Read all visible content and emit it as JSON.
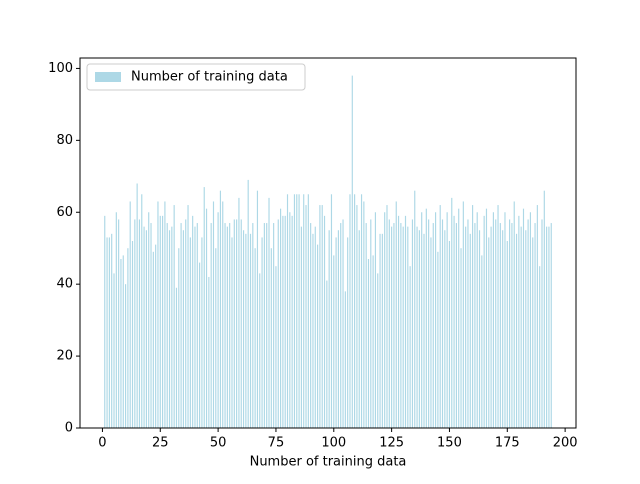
{
  "chart_data": {
    "type": "bar",
    "xlabel": "Number of training data",
    "x": [
      1,
      2,
      3,
      4,
      5,
      6,
      7,
      8,
      9,
      10,
      11,
      12,
      13,
      14,
      15,
      16,
      17,
      18,
      19,
      20,
      21,
      22,
      23,
      24,
      25,
      26,
      27,
      28,
      29,
      30,
      31,
      32,
      33,
      34,
      35,
      36,
      37,
      38,
      39,
      40,
      41,
      42,
      43,
      44,
      45,
      46,
      47,
      48,
      49,
      50,
      51,
      52,
      53,
      54,
      55,
      56,
      57,
      58,
      59,
      60,
      61,
      62,
      63,
      64,
      65,
      66,
      67,
      68,
      69,
      70,
      71,
      72,
      73,
      74,
      75,
      76,
      77,
      78,
      79,
      80,
      81,
      82,
      83,
      84,
      85,
      86,
      87,
      88,
      89,
      90,
      91,
      92,
      93,
      94,
      95,
      96,
      97,
      98,
      99,
      100,
      101,
      102,
      103,
      104,
      105,
      106,
      107,
      108,
      109,
      110,
      111,
      112,
      113,
      114,
      115,
      116,
      117,
      118,
      119,
      120,
      121,
      122,
      123,
      124,
      125,
      126,
      127,
      128,
      129,
      130,
      131,
      132,
      133,
      134,
      135,
      136,
      137,
      138,
      139,
      140,
      141,
      142,
      143,
      144,
      145,
      146,
      147,
      148,
      149,
      150,
      151,
      152,
      153,
      154,
      155,
      156,
      157,
      158,
      159,
      160,
      161,
      162,
      163,
      164,
      165,
      166,
      167,
      168,
      169,
      170,
      171,
      172,
      173,
      174,
      175,
      176,
      177,
      178,
      179,
      180,
      181,
      182,
      183,
      184,
      185,
      186,
      187,
      188,
      189,
      190,
      191,
      192,
      193,
      194
    ],
    "series": [
      {
        "name": "Number of training data",
        "color": "#add8e6",
        "values": [
          59,
          53,
          53,
          54,
          43,
          60,
          58,
          47,
          48,
          40,
          50,
          63,
          52,
          58,
          68,
          58,
          65,
          56,
          55,
          60,
          57,
          49,
          51,
          63,
          59,
          59,
          63,
          57,
          55,
          56,
          62,
          39,
          50,
          57,
          55,
          58,
          62,
          53,
          59,
          56,
          57,
          46,
          53,
          67,
          61,
          42,
          57,
          63,
          50,
          60,
          66,
          63,
          57,
          56,
          57,
          53,
          58,
          58,
          64,
          58,
          55,
          54,
          69,
          54,
          57,
          50,
          66,
          43,
          53,
          57,
          57,
          64,
          50,
          57,
          45,
          58,
          61,
          59,
          59,
          65,
          60,
          59,
          65,
          65,
          65,
          56,
          65,
          62,
          65,
          57,
          54,
          56,
          51,
          62,
          62,
          59,
          41,
          55,
          65,
          48,
          53,
          55,
          57,
          58,
          38,
          53,
          65,
          98,
          65,
          62,
          55,
          65,
          63,
          57,
          47,
          58,
          48,
          60,
          43,
          54,
          54,
          60,
          62,
          58,
          56,
          57,
          63,
          59,
          57,
          56,
          59,
          56,
          45,
          58,
          66,
          56,
          55,
          60,
          54,
          61,
          58,
          53,
          57,
          60,
          49,
          62,
          58,
          55,
          60,
          52,
          64,
          59,
          57,
          61,
          50,
          63,
          56,
          58,
          54,
          62,
          57,
          60,
          55,
          48,
          59,
          61,
          53,
          56,
          60,
          58,
          62,
          57,
          55,
          60,
          52,
          58,
          57,
          63,
          54,
          59,
          56,
          61,
          55,
          58,
          60,
          53,
          57,
          62,
          45,
          58,
          66,
          56,
          56,
          57
        ]
      }
    ],
    "xlim": [
      -9.7,
      204.7
    ],
    "ylim": [
      0,
      102.9
    ],
    "xticks": [
      0,
      25,
      50,
      75,
      100,
      125,
      150,
      175,
      200
    ],
    "yticks": [
      0,
      20,
      40,
      60,
      80,
      100
    ],
    "legend": "upper left"
  }
}
